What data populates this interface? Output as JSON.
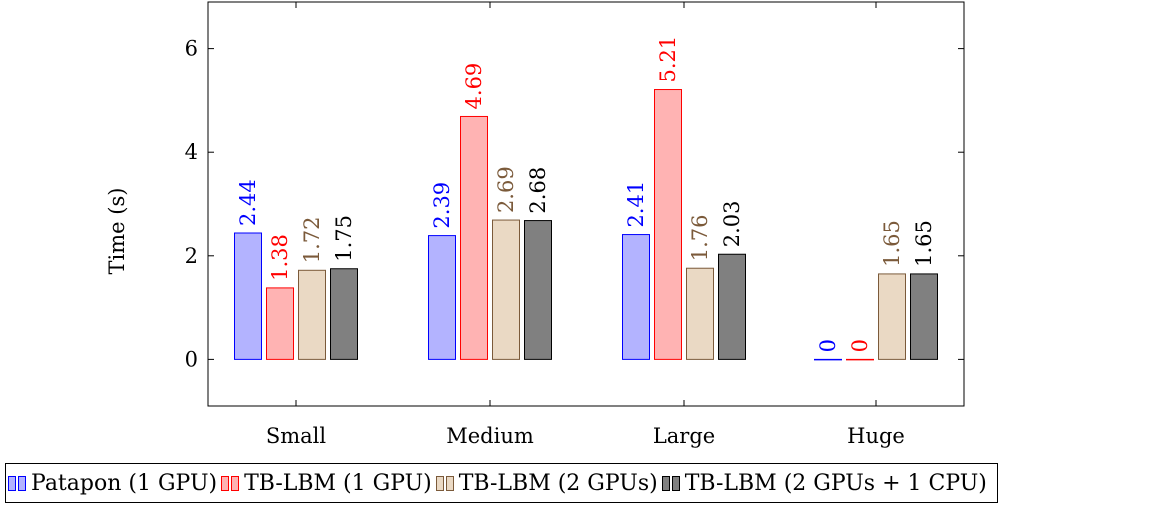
{
  "chart_data": {
    "type": "bar",
    "ylabel": "Time (s)",
    "xlabel": "",
    "categories": [
      "Small",
      "Medium",
      "Large",
      "Huge"
    ],
    "ylim": [
      -0.9,
      6.9
    ],
    "yticks": [
      0,
      2,
      4,
      6
    ],
    "grid": false,
    "legend_position": "bottom",
    "series": [
      {
        "name": "Patapon (1 GPU)",
        "values": [
          2.44,
          2.39,
          2.41,
          0
        ],
        "labels": [
          "2.44",
          "2.39",
          "2.41",
          "0"
        ],
        "fill": "#b3b3ff",
        "stroke": "#0000ff",
        "label_color": "#0000ff"
      },
      {
        "name": "TB-LBM (1 GPU)",
        "values": [
          1.38,
          4.69,
          5.21,
          0
        ],
        "labels": [
          "1.38",
          "4.69",
          "5.21",
          "0"
        ],
        "fill": "#ffb3b3",
        "stroke": "#ff0000",
        "label_color": "#ff0000"
      },
      {
        "name": "TB-LBM (2 GPUs)",
        "values": [
          1.72,
          2.69,
          1.76,
          1.65
        ],
        "labels": [
          "1.72",
          "2.69",
          "1.76",
          "1.65"
        ],
        "fill": "#ead9c4",
        "stroke": "#7b5a3a",
        "label_color": "#7b5a3a"
      },
      {
        "name": "TB-LBM (2 GPUs + 1 CPU)",
        "values": [
          1.75,
          2.68,
          2.03,
          1.65
        ],
        "labels": [
          "1.75",
          "2.68",
          "2.03",
          "1.65"
        ],
        "fill": "#808080",
        "stroke": "#000000",
        "label_color": "#000000"
      }
    ]
  }
}
